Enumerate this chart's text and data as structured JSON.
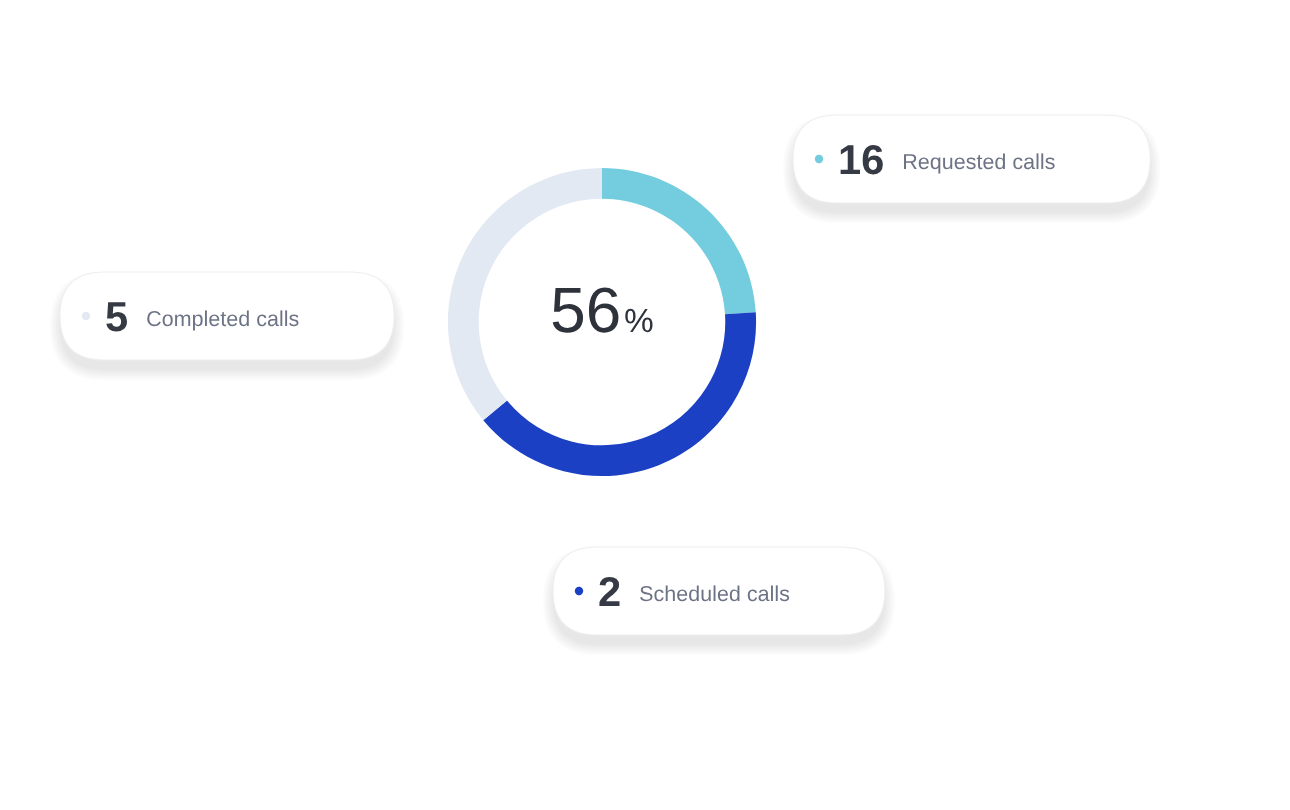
{
  "chart_data": {
    "type": "donut",
    "categories": [
      null,
      null,
      null
    ],
    "values": [
      24,
      40,
      36
    ],
    "colors": [
      "#73cdde",
      "#1b40c3",
      "#e3e9f2"
    ],
    "annotations": [
      "56%",
      "16",
      "Requested calls",
      "2",
      "Scheduled calls",
      "5",
      "Completed calls"
    ]
  }
}
